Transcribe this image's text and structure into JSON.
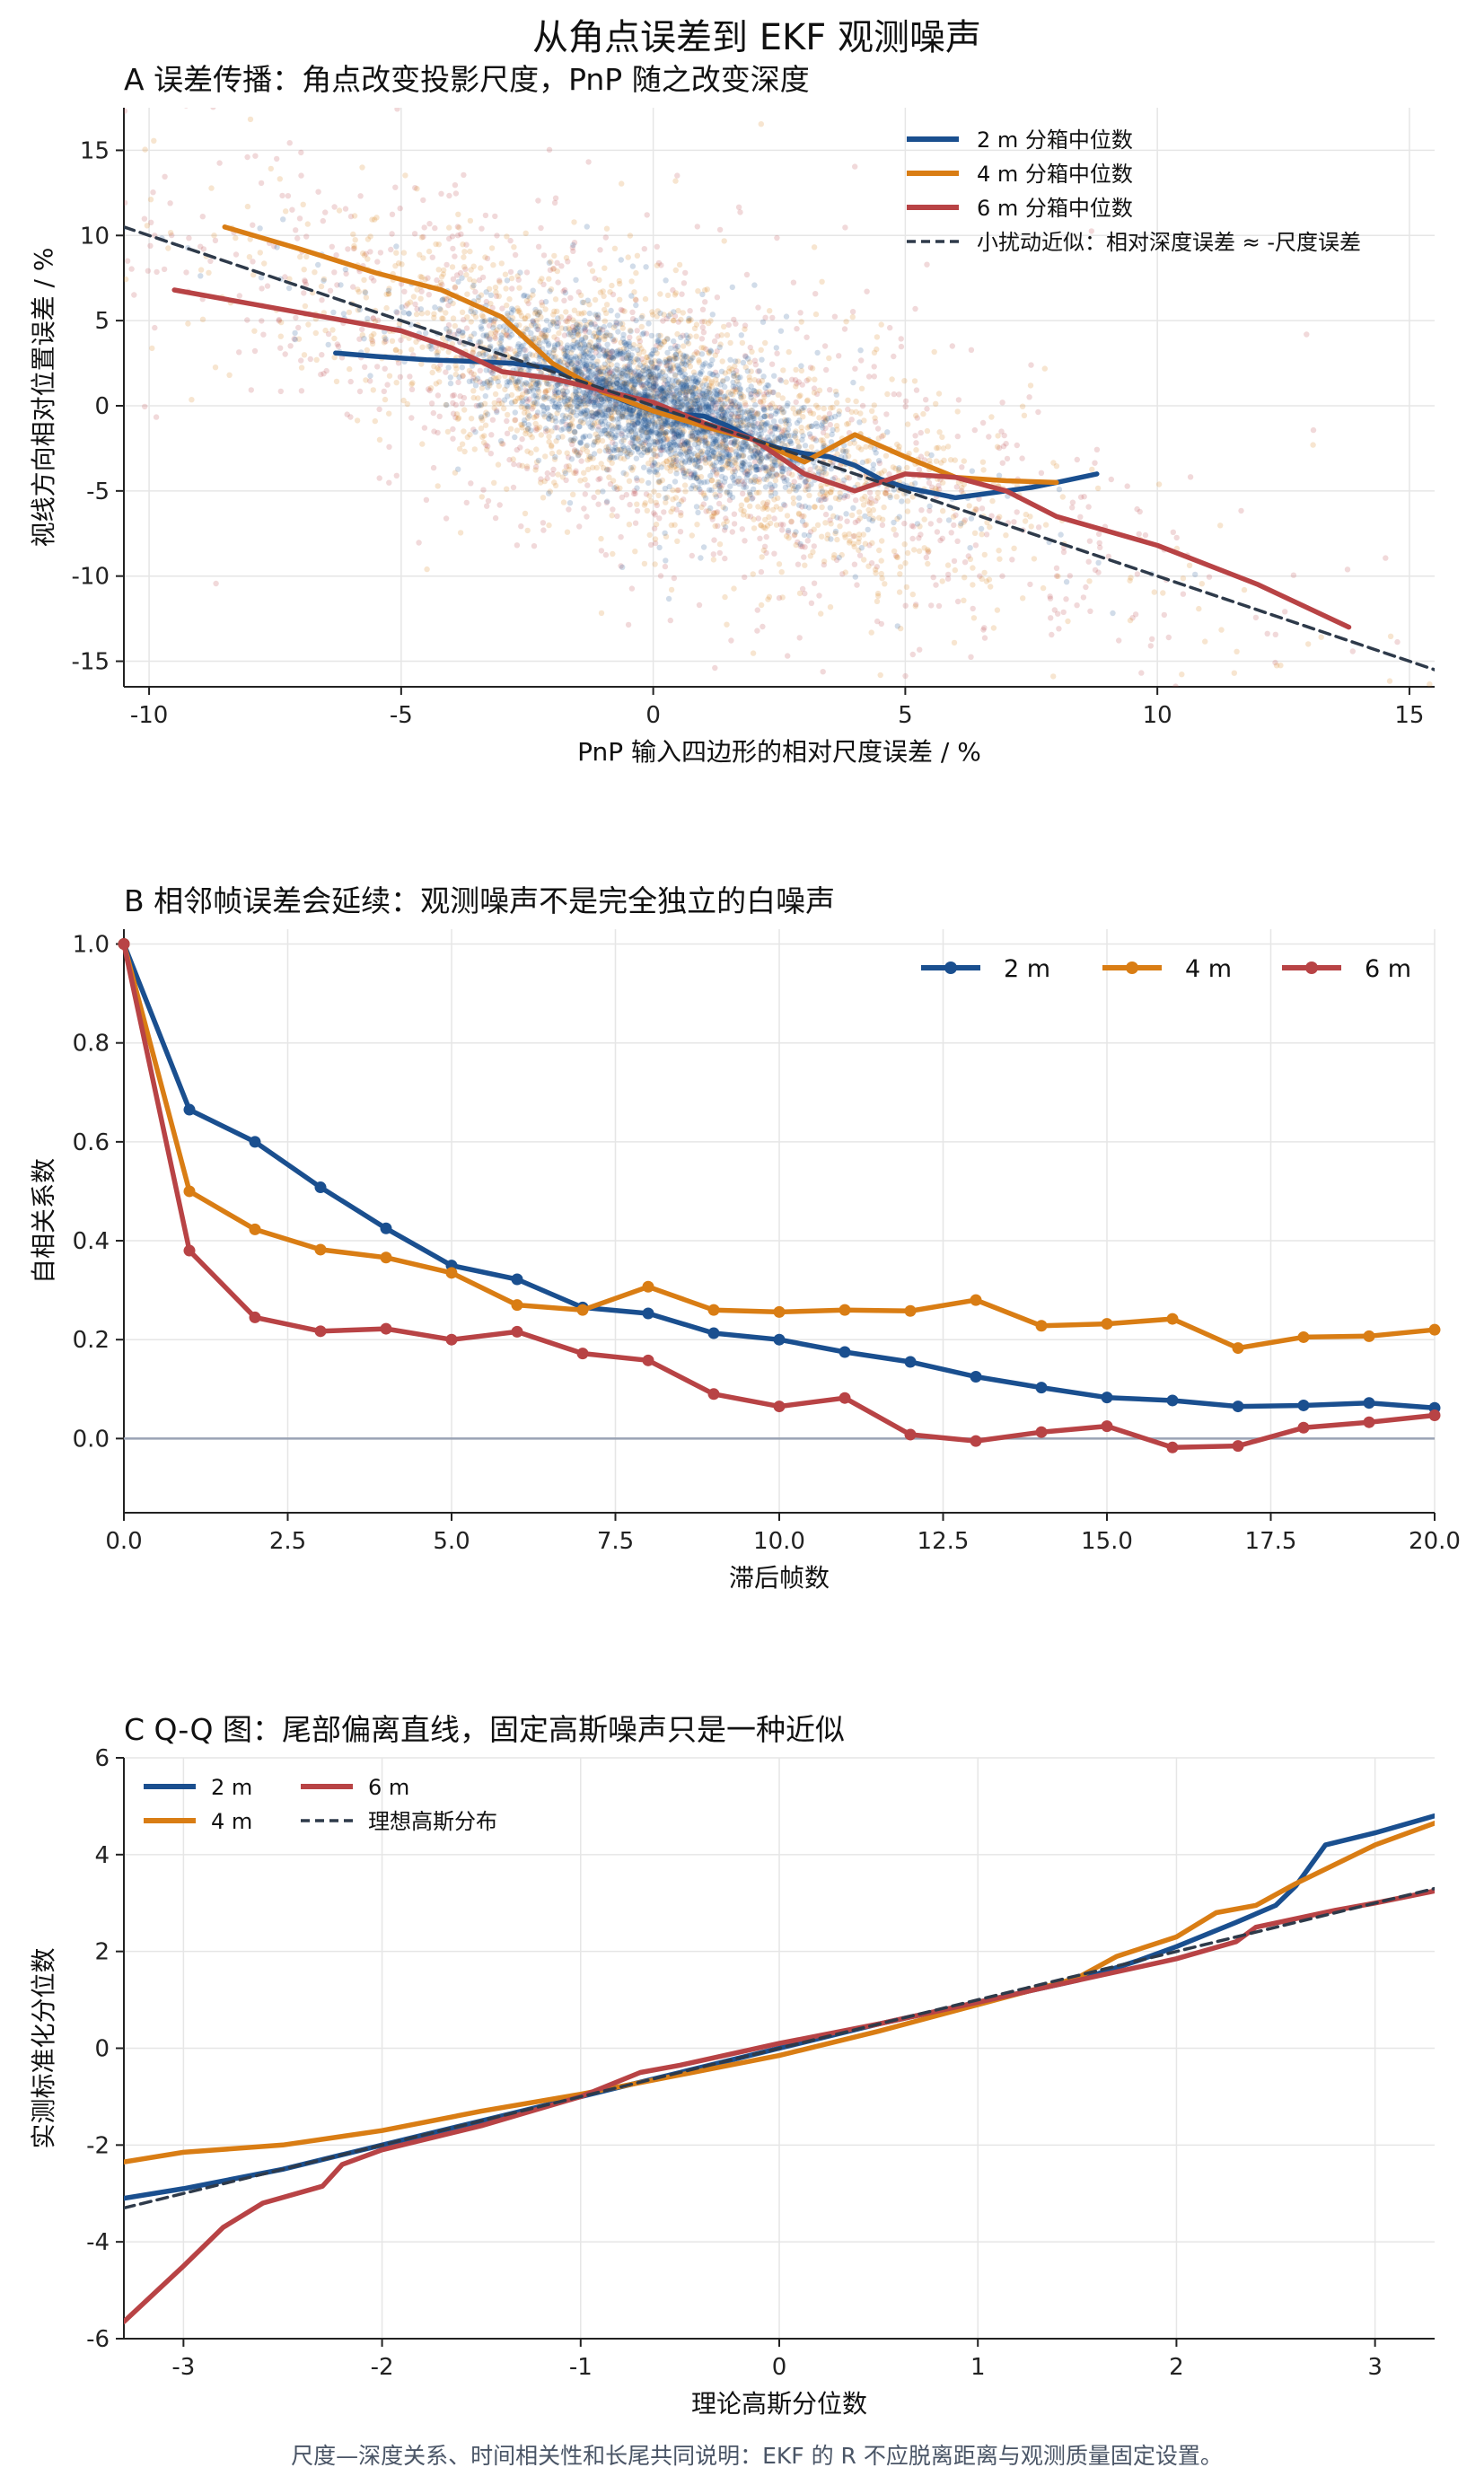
{
  "figure": {
    "title": "从角点误差到 EKF 观测噪声",
    "footnote": "尺度—深度关系、时间相关性和长尾共同说明：EKF 的 R 不应脱离距离与观测质量固定设置。"
  },
  "colors": {
    "2m": "#1a4f8f",
    "4m": "#d97d14",
    "6m": "#b84345",
    "reference": "#2e3a4a",
    "grid": "#e6e6e6",
    "zero_line": "#9aa3b4",
    "footnote": "#4a5566"
  },
  "chart_data": [
    {
      "id": "A",
      "type": "scatter",
      "title": "A  误差传播：角点改变投影尺度，PnP 随之改变深度",
      "xlabel": "PnP 输入四边形的相对尺度误差 / %",
      "ylabel": "视线方向相对位置误差 / %",
      "xlim": [
        -10.5,
        15.5
      ],
      "ylim": [
        -16.5,
        17.5
      ],
      "xticks": [
        -10,
        -5,
        0,
        5,
        10,
        15
      ],
      "yticks": [
        -15,
        -10,
        -5,
        0,
        5,
        10,
        15
      ],
      "grid": true,
      "legend_position": "top-right",
      "series": [
        {
          "name": "2 m 分箱中位数",
          "key": "2m",
          "x": [
            -6.3,
            -5.5,
            -4.5,
            -3.5,
            -2.8,
            -2.0,
            -1.5,
            -1.0,
            -0.5,
            0.0,
            0.5,
            1.0,
            1.5,
            2.0,
            2.5,
            3.0,
            3.5,
            4.0,
            4.5,
            5.0,
            5.5,
            6.0,
            6.5,
            7.0,
            7.5,
            8.0,
            8.8
          ],
          "y": [
            3.1,
            2.9,
            2.7,
            2.6,
            2.5,
            2.2,
            1.6,
            0.8,
            0.2,
            -0.3,
            -0.5,
            -0.6,
            -1.2,
            -2.0,
            -2.5,
            -2.8,
            -3.0,
            -3.5,
            -4.3,
            -4.8,
            -5.1,
            -5.4,
            -5.2,
            -5.0,
            -4.8,
            -4.5,
            -4.0
          ]
        },
        {
          "name": "4 m 分箱中位数",
          "key": "4m",
          "x": [
            -8.5,
            -7.0,
            -5.5,
            -4.2,
            -3.0,
            -2.0,
            -1.0,
            0.0,
            1.0,
            2.0,
            3.0,
            4.0,
            5.0,
            6.0,
            7.0,
            8.0
          ],
          "y": [
            10.5,
            9.2,
            7.8,
            6.8,
            5.2,
            2.5,
            0.8,
            -0.3,
            -1.2,
            -2.0,
            -3.3,
            -1.7,
            -3.0,
            -4.2,
            -4.4,
            -4.5
          ]
        },
        {
          "name": "6 m 分箱中位数",
          "key": "6m",
          "x": [
            -9.5,
            -8.0,
            -6.5,
            -5.0,
            -4.0,
            -3.0,
            -2.0,
            -1.0,
            0.0,
            1.0,
            2.0,
            3.0,
            4.0,
            5.0,
            6.0,
            7.0,
            8.0,
            10.0,
            12.0,
            13.8
          ],
          "y": [
            6.8,
            6.0,
            5.2,
            4.4,
            3.4,
            2.0,
            1.6,
            0.9,
            0.2,
            -1.0,
            -2.0,
            -4.0,
            -5.0,
            -4.0,
            -4.2,
            -5.0,
            -6.5,
            -8.2,
            -10.5,
            -13.0
          ]
        },
        {
          "name": "小扰动近似：相对深度误差 ≈ -尺度误差",
          "key": "reference",
          "x": [
            -10.5,
            15.5
          ],
          "y": [
            10.5,
            -15.5
          ]
        }
      ]
    },
    {
      "id": "B",
      "type": "line",
      "title": "B  相邻帧误差会延续：观测噪声不是完全独立的白噪声",
      "xlabel": "滞后帧数",
      "ylabel": "自相关系数",
      "xlim": [
        0,
        20
      ],
      "ylim": [
        -0.15,
        1.03
      ],
      "xticks": [
        "0.0",
        "2.5",
        "5.0",
        "7.5",
        "10.0",
        "12.5",
        "15.0",
        "17.5",
        "20.0"
      ],
      "yticks": [
        "0.0",
        "0.2",
        "0.4",
        "0.6",
        "0.8",
        "1.0"
      ],
      "grid": true,
      "legend_position": "top-right",
      "x": [
        0,
        1,
        2,
        3,
        4,
        5,
        6,
        7,
        8,
        9,
        10,
        11,
        12,
        13,
        14,
        15,
        16,
        17,
        18,
        19,
        20
      ],
      "series": [
        {
          "name": "2 m",
          "key": "2m",
          "values": [
            1.0,
            0.665,
            0.6,
            0.508,
            0.425,
            0.35,
            0.322,
            0.265,
            0.253,
            0.213,
            0.2,
            0.175,
            0.155,
            0.125,
            0.103,
            0.083,
            0.077,
            0.065,
            0.067,
            0.072,
            0.062
          ]
        },
        {
          "name": "4 m",
          "key": "4m",
          "values": [
            1.0,
            0.5,
            0.423,
            0.382,
            0.366,
            0.335,
            0.27,
            0.26,
            0.307,
            0.26,
            0.256,
            0.26,
            0.258,
            0.28,
            0.228,
            0.232,
            0.242,
            0.183,
            0.205,
            0.207,
            0.22
          ]
        },
        {
          "name": "6 m",
          "key": "6m",
          "values": [
            1.0,
            0.38,
            0.245,
            0.217,
            0.222,
            0.2,
            0.216,
            0.172,
            0.158,
            0.09,
            0.065,
            0.082,
            0.008,
            -0.005,
            0.013,
            0.025,
            -0.018,
            -0.015,
            0.022,
            0.033,
            0.047
          ]
        }
      ]
    },
    {
      "id": "C",
      "type": "line",
      "title": "C  Q-Q 图：尾部偏离直线，固定高斯噪声只是一种近似",
      "xlabel": "理论高斯分位数",
      "ylabel": "实测标准化分位数",
      "xlim": [
        -3.3,
        3.3
      ],
      "ylim": [
        -6,
        6
      ],
      "xticks": [
        -3,
        -2,
        -1,
        0,
        1,
        2,
        3
      ],
      "yticks": [
        -6,
        -4,
        -2,
        0,
        2,
        4,
        6
      ],
      "grid": true,
      "legend_position": "top-left",
      "series": [
        {
          "name": "2 m",
          "key": "2m",
          "x": [
            -3.3,
            -3.0,
            -2.5,
            -2.2,
            -2.0,
            -1.5,
            -1.0,
            -0.5,
            0.0,
            0.5,
            1.0,
            1.5,
            1.8,
            2.0,
            2.3,
            2.5,
            2.6,
            2.75,
            3.0,
            3.3
          ],
          "y": [
            -3.1,
            -2.9,
            -2.5,
            -2.2,
            -2.0,
            -1.5,
            -1.0,
            -0.5,
            0.0,
            0.5,
            0.95,
            1.4,
            1.8,
            2.1,
            2.6,
            2.95,
            3.35,
            4.2,
            4.45,
            4.8
          ]
        },
        {
          "name": "4 m",
          "key": "4m",
          "x": [
            -3.3,
            -3.0,
            -2.5,
            -2.0,
            -1.5,
            -1.0,
            -0.5,
            0.0,
            0.5,
            1.0,
            1.5,
            1.7,
            2.0,
            2.2,
            2.4,
            2.6,
            2.8,
            3.0,
            3.3
          ],
          "y": [
            -2.35,
            -2.15,
            -2.0,
            -1.7,
            -1.3,
            -0.95,
            -0.55,
            -0.15,
            0.35,
            0.9,
            1.45,
            1.9,
            2.3,
            2.8,
            2.95,
            3.4,
            3.8,
            4.2,
            4.65
          ]
        },
        {
          "name": "6 m",
          "key": "6m",
          "x": [
            -3.3,
            -3.0,
            -2.8,
            -2.6,
            -2.3,
            -2.2,
            -2.0,
            -1.5,
            -1.0,
            -0.7,
            -0.5,
            0.0,
            0.5,
            1.0,
            1.5,
            2.0,
            2.3,
            2.4,
            2.8,
            3.0,
            3.3
          ],
          "y": [
            -5.65,
            -4.5,
            -3.7,
            -3.2,
            -2.85,
            -2.4,
            -2.1,
            -1.6,
            -1.0,
            -0.5,
            -0.35,
            0.1,
            0.5,
            0.95,
            1.4,
            1.85,
            2.2,
            2.5,
            2.85,
            3.0,
            3.25
          ]
        },
        {
          "name": "理想高斯分布",
          "key": "reference",
          "x": [
            -3.3,
            3.3
          ],
          "y": [
            -3.3,
            3.3
          ]
        }
      ]
    }
  ]
}
